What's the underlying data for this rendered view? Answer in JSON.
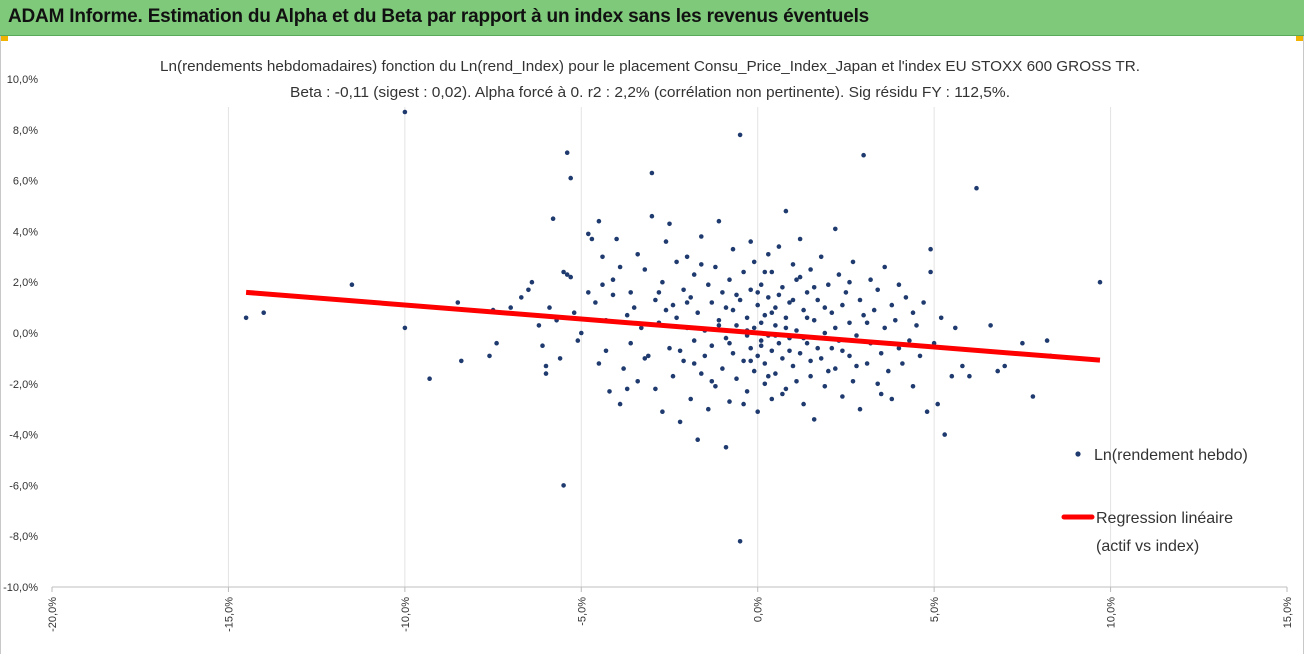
{
  "banner": {
    "title": "ADAM Informe. Estimation du Alpha et du Beta par rapport à un index sans les revenus éventuels"
  },
  "colors": {
    "banner_bg": "#7fc97a",
    "accent_corner": "#f0b400",
    "points": "#1f3a6e",
    "regression": "#ff0000",
    "grid": "#e3e3e3"
  },
  "chart_data": {
    "type": "scatter",
    "title": "Ln(rendements hebdomadaires) fonction du Ln(rend_Index) pour le placement Consu_Price_Index_Japan et l'index EU STOXX 600 GROSS TR.",
    "subtitle": "Beta : -0,11 (sigest : 0,02). Alpha forcé à 0. r2 : 2,2% (corrélation non pertinente). Sig résidu FY : 112,5%.",
    "xlabel": "",
    "ylabel": "",
    "xlim": [
      -0.2,
      0.15
    ],
    "ylim": [
      -0.1,
      0.1
    ],
    "x_tick_labels": [
      "-20,0%",
      "-15,0%",
      "-10,0%",
      "-5,0%",
      "0,0%",
      "5,0%",
      "10,0%",
      "15,0%"
    ],
    "y_tick_labels": [
      "10,0%",
      "8,0%",
      "6,0%",
      "4,0%",
      "2,0%",
      "0,0%",
      "-2,0%",
      "-4,0%",
      "-6,0%",
      "-8,0%",
      "-10,0%"
    ],
    "grid": "vertical",
    "legend_position": "right",
    "series": [
      {
        "name": "Ln(rendement hebdo)",
        "kind": "points",
        "points": [
          [
            -0.145,
            0.006
          ],
          [
            -0.14,
            0.008
          ],
          [
            -0.115,
            0.019
          ],
          [
            -0.1,
            0.087
          ],
          [
            -0.1,
            0.002
          ],
          [
            -0.093,
            -0.018
          ],
          [
            -0.085,
            0.012
          ],
          [
            -0.084,
            -0.011
          ],
          [
            -0.076,
            -0.009
          ],
          [
            -0.075,
            0.009
          ],
          [
            -0.074,
            -0.004
          ],
          [
            -0.07,
            0.01
          ],
          [
            -0.067,
            0.014
          ],
          [
            -0.065,
            0.017
          ],
          [
            -0.064,
            0.02
          ],
          [
            -0.062,
            0.003
          ],
          [
            -0.061,
            -0.005
          ],
          [
            -0.06,
            -0.016
          ],
          [
            -0.06,
            -0.013
          ],
          [
            -0.059,
            0.01
          ],
          [
            -0.058,
            0.045
          ],
          [
            -0.057,
            0.005
          ],
          [
            -0.056,
            -0.01
          ],
          [
            -0.055,
            0.024
          ],
          [
            -0.055,
            -0.06
          ],
          [
            -0.054,
            0.071
          ],
          [
            -0.054,
            0.023
          ],
          [
            -0.053,
            0.061
          ],
          [
            -0.052,
            0.008
          ],
          [
            -0.051,
            -0.003
          ],
          [
            -0.05,
            0.0
          ],
          [
            -0.048,
            0.039
          ],
          [
            -0.047,
            0.037
          ],
          [
            -0.046,
            0.012
          ],
          [
            -0.045,
            0.044
          ],
          [
            -0.045,
            -0.012
          ],
          [
            -0.044,
            0.03
          ],
          [
            -0.044,
            0.019
          ],
          [
            -0.043,
            0.005
          ],
          [
            -0.043,
            -0.007
          ],
          [
            -0.042,
            -0.023
          ],
          [
            -0.041,
            0.015
          ],
          [
            -0.04,
            0.037
          ],
          [
            -0.039,
            -0.028
          ],
          [
            -0.039,
            0.026
          ],
          [
            -0.038,
            -0.014
          ],
          [
            -0.037,
            0.007
          ],
          [
            -0.036,
            0.016
          ],
          [
            -0.036,
            -0.004
          ],
          [
            -0.035,
            0.01
          ],
          [
            -0.034,
            0.031
          ],
          [
            -0.034,
            -0.019
          ],
          [
            -0.033,
            0.002
          ],
          [
            -0.032,
            0.025
          ],
          [
            -0.031,
            -0.009
          ],
          [
            -0.03,
            0.046
          ],
          [
            -0.03,
            0.063
          ],
          [
            -0.029,
            0.013
          ],
          [
            -0.029,
            -0.022
          ],
          [
            -0.028,
            0.004
          ],
          [
            -0.027,
            -0.031
          ],
          [
            -0.027,
            0.02
          ],
          [
            -0.026,
            0.036
          ],
          [
            -0.025,
            -0.006
          ],
          [
            -0.025,
            0.043
          ],
          [
            -0.024,
            0.011
          ],
          [
            -0.024,
            -0.017
          ],
          [
            -0.023,
            0.028
          ],
          [
            -0.023,
            0.006
          ],
          [
            -0.022,
            -0.035
          ],
          [
            -0.021,
            0.017
          ],
          [
            -0.021,
            -0.011
          ],
          [
            -0.02,
            0.002
          ],
          [
            -0.02,
            0.03
          ],
          [
            -0.019,
            -0.026
          ],
          [
            -0.019,
            0.014
          ],
          [
            -0.018,
            -0.003
          ],
          [
            -0.018,
            0.023
          ],
          [
            -0.017,
            -0.042
          ],
          [
            -0.017,
            0.008
          ],
          [
            -0.016,
            -0.016
          ],
          [
            -0.016,
            0.038
          ],
          [
            -0.015,
            0.001
          ],
          [
            -0.015,
            -0.009
          ],
          [
            -0.014,
            0.019
          ],
          [
            -0.014,
            -0.03
          ],
          [
            -0.013,
            0.012
          ],
          [
            -0.013,
            -0.005
          ],
          [
            -0.012,
            0.026
          ],
          [
            -0.012,
            -0.021
          ],
          [
            -0.011,
            0.044
          ],
          [
            -0.011,
            0.005
          ],
          [
            -0.01,
            -0.014
          ],
          [
            -0.01,
            0.016
          ],
          [
            -0.009,
            -0.045
          ],
          [
            -0.009,
            -0.002
          ],
          [
            -0.008,
            0.021
          ],
          [
            -0.008,
            -0.027
          ],
          [
            -0.007,
            0.009
          ],
          [
            -0.007,
            -0.008
          ],
          [
            -0.007,
            0.033
          ],
          [
            -0.006,
            -0.018
          ],
          [
            -0.006,
            0.003
          ],
          [
            -0.005,
            0.078
          ],
          [
            -0.005,
            -0.082
          ],
          [
            -0.005,
            0.013
          ],
          [
            -0.004,
            -0.011
          ],
          [
            -0.004,
            0.024
          ],
          [
            -0.003,
            -0.001
          ],
          [
            -0.003,
            -0.023
          ],
          [
            -0.003,
            0.006
          ],
          [
            -0.002,
            0.036
          ],
          [
            -0.002,
            -0.006
          ],
          [
            -0.002,
            0.017
          ],
          [
            -0.001,
            -0.015
          ],
          [
            -0.001,
            0.002
          ],
          [
            -0.001,
            0.028
          ],
          [
            0.0,
            -0.009
          ],
          [
            0.0,
            0.011
          ],
          [
            0.0,
            -0.031
          ],
          [
            0.001,
            0.004
          ],
          [
            0.001,
            -0.003
          ],
          [
            0.001,
            0.019
          ],
          [
            0.002,
            -0.012
          ],
          [
            0.002,
            0.007
          ],
          [
            0.002,
            -0.02
          ],
          [
            0.003,
            0.031
          ],
          [
            0.003,
            -0.001
          ],
          [
            0.003,
            0.014
          ],
          [
            0.004,
            -0.007
          ],
          [
            0.004,
            0.024
          ],
          [
            0.004,
            -0.026
          ],
          [
            0.005,
            0.003
          ],
          [
            0.005,
            0.01
          ],
          [
            0.005,
            -0.016
          ],
          [
            0.006,
            0.034
          ],
          [
            0.006,
            -0.004
          ],
          [
            0.007,
            0.018
          ],
          [
            0.007,
            -0.01
          ],
          [
            0.008,
            0.006
          ],
          [
            0.008,
            0.048
          ],
          [
            0.008,
            -0.022
          ],
          [
            0.009,
            0.012
          ],
          [
            0.009,
            -0.002
          ],
          [
            0.01,
            0.027
          ],
          [
            0.01,
            -0.013
          ],
          [
            0.011,
            0.001
          ],
          [
            0.011,
            0.021
          ],
          [
            0.012,
            -0.008
          ],
          [
            0.012,
            0.037
          ],
          [
            0.013,
            -0.028
          ],
          [
            0.013,
            0.009
          ],
          [
            0.014,
            0.016
          ],
          [
            0.014,
            -0.004
          ],
          [
            0.015,
            0.025
          ],
          [
            0.015,
            -0.017
          ],
          [
            0.016,
            0.005
          ],
          [
            0.016,
            -0.034
          ],
          [
            0.017,
            0.013
          ],
          [
            0.018,
            -0.01
          ],
          [
            0.018,
            0.03
          ],
          [
            0.019,
            0.0
          ],
          [
            0.019,
            -0.021
          ],
          [
            0.02,
            0.019
          ],
          [
            0.021,
            -0.006
          ],
          [
            0.021,
            0.008
          ],
          [
            0.022,
            0.041
          ],
          [
            0.022,
            -0.014
          ],
          [
            0.023,
            0.023
          ],
          [
            0.023,
            -0.003
          ],
          [
            0.024,
            0.011
          ],
          [
            0.024,
            -0.025
          ],
          [
            0.025,
            0.016
          ],
          [
            0.026,
            -0.009
          ],
          [
            0.026,
            0.004
          ],
          [
            0.027,
            -0.019
          ],
          [
            0.027,
            0.028
          ],
          [
            0.028,
            -0.001
          ],
          [
            0.029,
            0.013
          ],
          [
            0.029,
            -0.03
          ],
          [
            0.03,
            0.007
          ],
          [
            0.03,
            0.07
          ],
          [
            0.031,
            -0.012
          ],
          [
            0.032,
            0.021
          ],
          [
            0.032,
            -0.004
          ],
          [
            0.033,
            0.009
          ],
          [
            0.034,
            -0.02
          ],
          [
            0.034,
            0.017
          ],
          [
            0.035,
            -0.008
          ],
          [
            0.036,
            0.002
          ],
          [
            0.036,
            0.026
          ],
          [
            0.037,
            -0.015
          ],
          [
            0.038,
            0.011
          ],
          [
            0.038,
            -0.026
          ],
          [
            0.039,
            0.005
          ],
          [
            0.04,
            -0.006
          ],
          [
            0.04,
            0.019
          ],
          [
            0.041,
            -0.012
          ],
          [
            0.042,
            0.014
          ],
          [
            0.043,
            -0.003
          ],
          [
            0.044,
            0.008
          ],
          [
            0.044,
            -0.021
          ],
          [
            0.045,
            0.003
          ],
          [
            0.046,
            -0.009
          ],
          [
            0.047,
            0.012
          ],
          [
            0.048,
            -0.031
          ],
          [
            0.049,
            0.024
          ],
          [
            0.049,
            0.033
          ],
          [
            0.05,
            -0.004
          ],
          [
            0.051,
            -0.028
          ],
          [
            0.052,
            0.006
          ],
          [
            0.053,
            -0.04
          ],
          [
            0.055,
            -0.017
          ],
          [
            0.056,
            0.002
          ],
          [
            0.058,
            -0.013
          ],
          [
            0.06,
            -0.017
          ],
          [
            0.062,
            0.057
          ],
          [
            0.066,
            0.003
          ],
          [
            0.068,
            -0.015
          ],
          [
            0.07,
            -0.013
          ],
          [
            0.075,
            -0.004
          ],
          [
            0.078,
            -0.025
          ],
          [
            0.082,
            -0.003
          ],
          [
            0.083,
            -0.009
          ],
          [
            0.097,
            0.02
          ],
          [
            -0.053,
            0.022
          ],
          [
            -0.048,
            0.016
          ],
          [
            -0.041,
            0.021
          ],
          [
            -0.037,
            -0.022
          ],
          [
            -0.032,
            -0.01
          ],
          [
            -0.028,
            0.016
          ],
          [
            -0.026,
            0.009
          ],
          [
            -0.022,
            -0.007
          ],
          [
            -0.02,
            0.012
          ],
          [
            -0.018,
            -0.012
          ],
          [
            -0.016,
            0.027
          ],
          [
            -0.013,
            -0.019
          ],
          [
            -0.011,
            0.003
          ],
          [
            -0.009,
            0.01
          ],
          [
            -0.008,
            -0.004
          ],
          [
            -0.006,
            0.015
          ],
          [
            -0.004,
            -0.028
          ],
          [
            -0.003,
            0.001
          ],
          [
            -0.002,
            -0.011
          ],
          [
            0.0,
            0.016
          ],
          [
            0.001,
            -0.005
          ],
          [
            0.002,
            0.024
          ],
          [
            0.003,
            -0.017
          ],
          [
            0.004,
            0.008
          ],
          [
            0.005,
            -0.001
          ],
          [
            0.006,
            0.015
          ],
          [
            0.007,
            -0.024
          ],
          [
            0.008,
            0.002
          ],
          [
            0.009,
            -0.007
          ],
          [
            0.01,
            0.013
          ],
          [
            0.011,
            -0.019
          ],
          [
            0.012,
            0.022
          ],
          [
            0.013,
            -0.002
          ],
          [
            0.014,
            0.006
          ],
          [
            0.015,
            -0.011
          ],
          [
            0.016,
            0.018
          ],
          [
            0.017,
            -0.006
          ],
          [
            0.019,
            0.01
          ],
          [
            0.02,
            -0.015
          ],
          [
            0.022,
            0.002
          ],
          [
            0.024,
            -0.007
          ],
          [
            0.026,
            0.02
          ],
          [
            0.028,
            -0.013
          ],
          [
            0.031,
            0.004
          ],
          [
            0.035,
            -0.024
          ]
        ]
      },
      {
        "name": "Regression linéaire (actif vs index)",
        "kind": "line",
        "points": [
          [
            -0.145,
            0.016
          ],
          [
            0.097,
            -0.0107
          ]
        ]
      }
    ]
  },
  "legend": {
    "points_label": "Ln(rendement hebdo)",
    "line_label_1": "Regression linéaire",
    "line_label_2": "(actif vs index)"
  }
}
